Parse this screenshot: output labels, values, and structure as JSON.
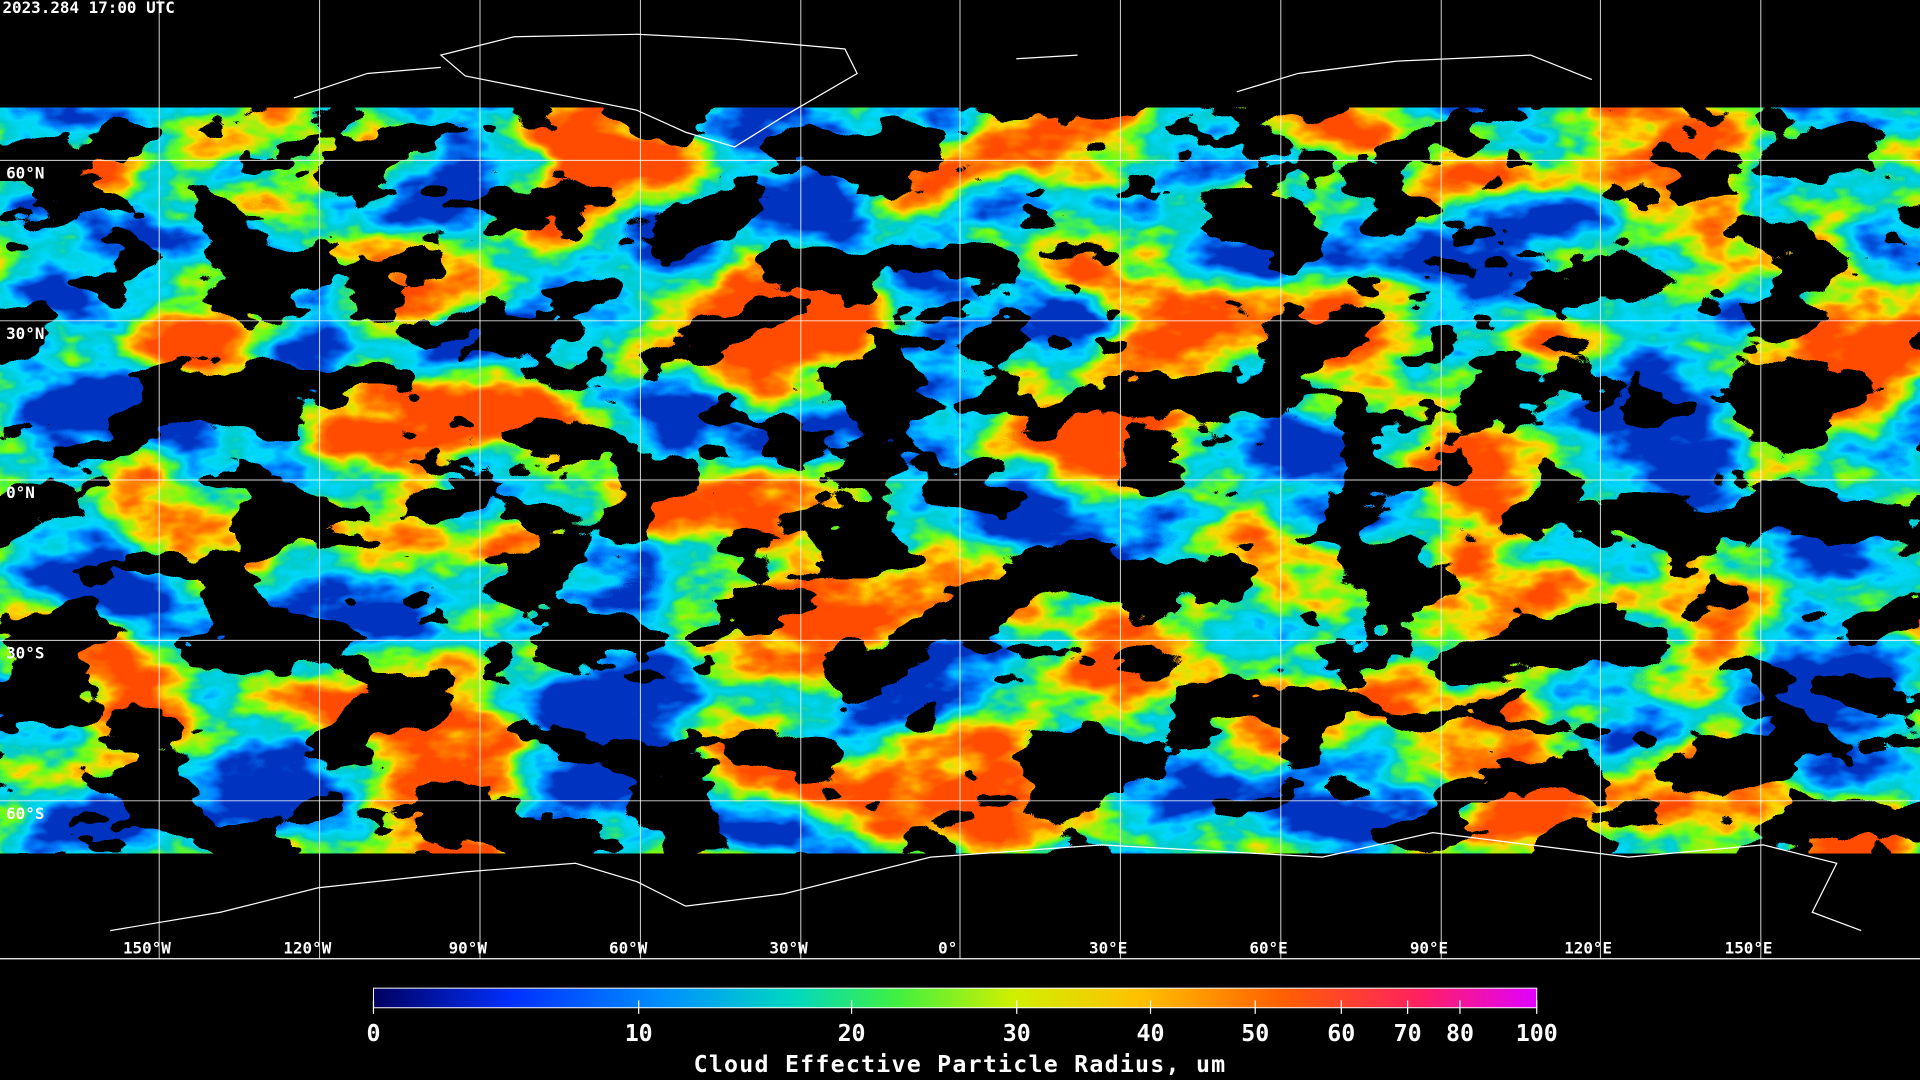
{
  "header": {
    "timestamp": "2023.284 17:00 UTC"
  },
  "map": {
    "latitude_labels": [
      "60°N",
      "30°N",
      "0°N",
      "30°S",
      "60°S"
    ],
    "longitude_labels": [
      "150°W",
      "120°W",
      "90°W",
      "60°W",
      "30°W",
      "0°",
      "30°E",
      "60°E",
      "90°E",
      "120°E",
      "150°E"
    ]
  },
  "colorbar": {
    "tick_labels": [
      "0",
      "10",
      "20",
      "30",
      "40",
      "50",
      "60",
      "70",
      "80",
      "100"
    ],
    "title": "Cloud Effective Particle Radius, um"
  }
}
